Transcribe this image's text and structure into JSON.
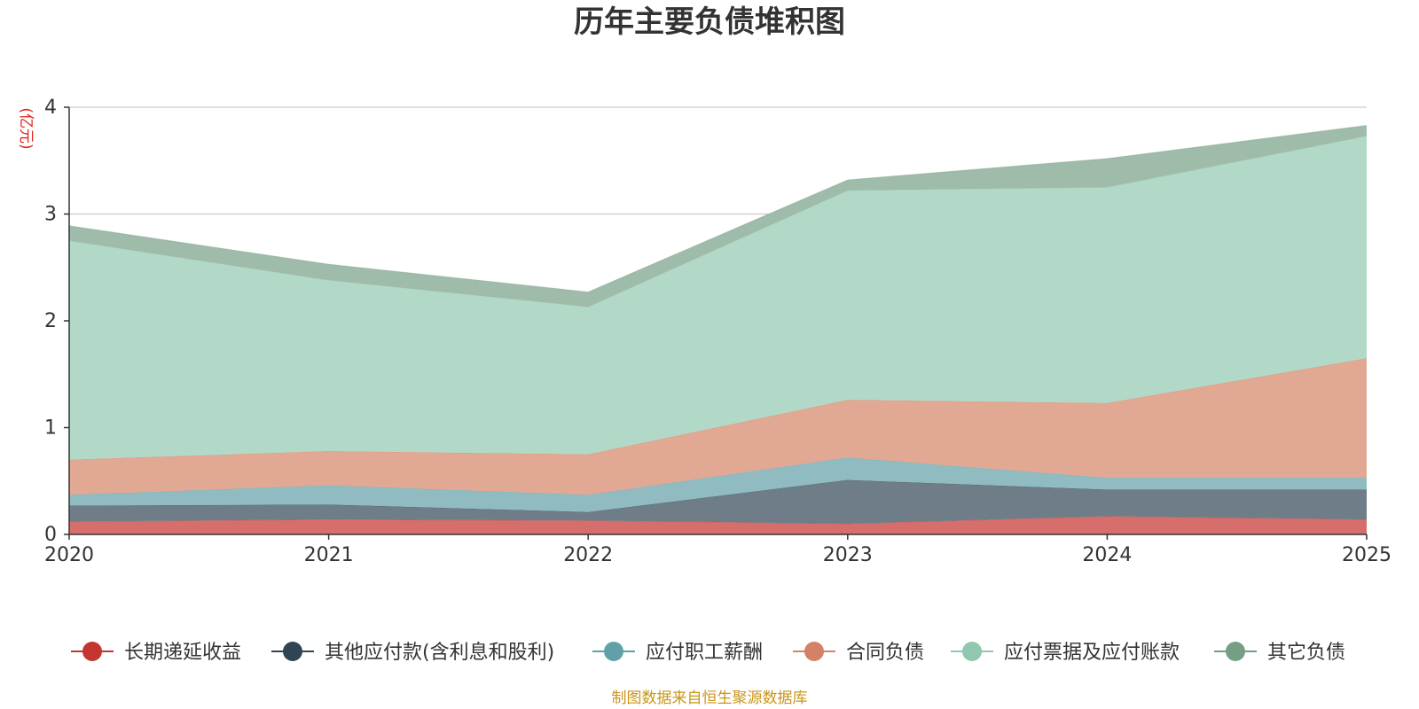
{
  "chart_data": {
    "type": "area",
    "stacked": true,
    "title": "历年主要负债堆积图",
    "ylabel": "(亿元)",
    "xlabel": "",
    "x": [
      "2020",
      "2021",
      "2022",
      "2023",
      "2024",
      "2025"
    ],
    "ylim": [
      0,
      4
    ],
    "yticks": [
      "0",
      "1",
      "2",
      "3",
      "4"
    ],
    "grid": true,
    "legend_position": "bottom",
    "series": [
      {
        "name": "长期递延收益",
        "color": "#c23531",
        "area_color": "#d66f6c",
        "values": [
          0.12,
          0.14,
          0.13,
          0.1,
          0.17,
          0.14
        ]
      },
      {
        "name": "其他应付款(含利息和股利)",
        "color": "#2f4554",
        "area_color": "#6e7d88",
        "values": [
          0.15,
          0.14,
          0.08,
          0.41,
          0.25,
          0.28
        ]
      },
      {
        "name": "应付职工薪酬",
        "color": "#61a0a8",
        "area_color": "#90bbc1",
        "values": [
          0.1,
          0.18,
          0.16,
          0.21,
          0.11,
          0.11
        ]
      },
      {
        "name": "合同负债",
        "color": "#d48265",
        "area_color": "#e1a893",
        "values": [
          0.33,
          0.32,
          0.38,
          0.54,
          0.7,
          1.12
        ]
      },
      {
        "name": "应付票据及应付账款",
        "color": "#91c7ae",
        "area_color": "#b2d9c7",
        "values": [
          2.05,
          1.6,
          1.38,
          1.96,
          2.02,
          2.08
        ]
      },
      {
        "name": "其它负债",
        "color": "#749f83",
        "area_color": "#9fbba9",
        "values": [
          0.14,
          0.15,
          0.14,
          0.1,
          0.27,
          0.1
        ]
      }
    ],
    "source_note": "制图数据来自恒生聚源数据库"
  }
}
